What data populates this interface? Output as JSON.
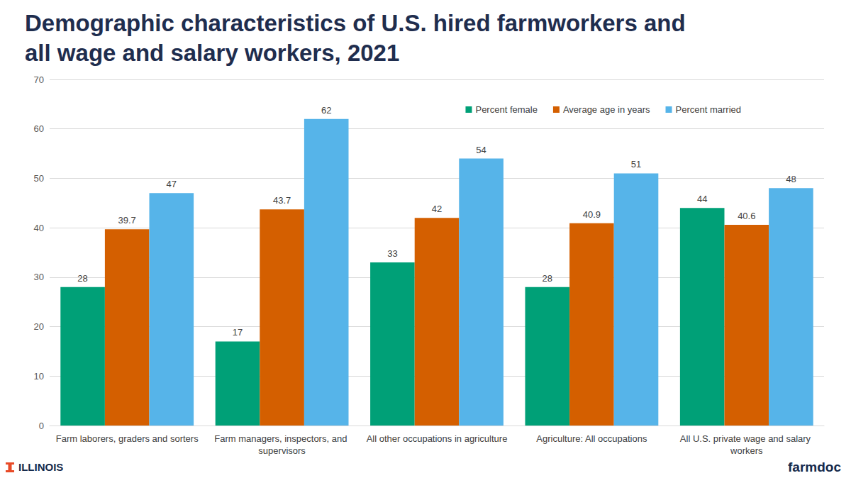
{
  "chart_data": {
    "type": "bar",
    "title": "Demographic characteristics of U.S. hired farmworkers and all wage and salary workers, 2021",
    "categories": [
      "Farm laborers, graders and sorters",
      "Farm managers, inspectors, and supervisors",
      "All other occupations in agriculture",
      "Agriculture: All occupations",
      "All U.S. private wage and salary workers"
    ],
    "series": [
      {
        "name": "Percent female",
        "color": "#00a077",
        "values": [
          28,
          17,
          33,
          28,
          44
        ]
      },
      {
        "name": "Average age in years",
        "color": "#d45f00",
        "values": [
          39.7,
          43.7,
          42,
          40.9,
          40.6
        ]
      },
      {
        "name": "Percent married",
        "color": "#56b4e9",
        "values": [
          47,
          62,
          54,
          51,
          48
        ]
      }
    ],
    "ylim": [
      0,
      70
    ],
    "yticks": [
      0,
      10,
      20,
      30,
      40,
      50,
      60,
      70
    ],
    "grid": true,
    "legend": "top-right",
    "data_labels": true,
    "annotations": [
      "ILLINOIS",
      "farmdoc"
    ]
  }
}
